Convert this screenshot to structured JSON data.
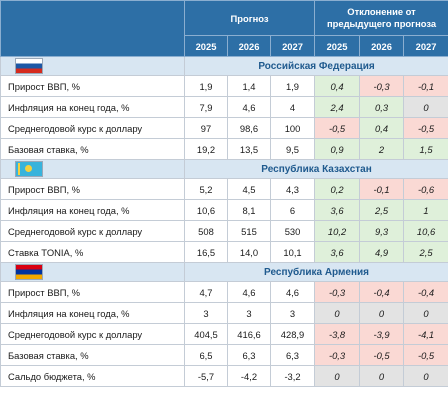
{
  "header": {
    "forecast": "Прогноз",
    "deviation": "Отклонение от предыдущего прогноза",
    "years": [
      "2025",
      "2026",
      "2027"
    ]
  },
  "colors": {
    "header_bg": "#2d6fa6",
    "country_bg": "#d8e6f2",
    "positive": "#dff0da",
    "negative": "#fad9d4",
    "zero": "#e3e3e3"
  },
  "sections": [
    {
      "country": "Российская Федерация",
      "flag": "russia-flag-icon",
      "rows": [
        {
          "label": "Прирост ВВП, %",
          "values": [
            "1,9",
            "1,4",
            "1,9"
          ],
          "dev": [
            "0,4",
            "-0,3",
            "-0,1"
          ],
          "dev_state": [
            "pos",
            "neg",
            "neg"
          ]
        },
        {
          "label": "Инфляция на конец года, %",
          "values": [
            "7,9",
            "4,6",
            "4"
          ],
          "dev": [
            "2,4",
            "0,3",
            "0"
          ],
          "dev_state": [
            "pos",
            "pos",
            "zero"
          ]
        },
        {
          "label": "Среднегодовой курс к доллару",
          "values": [
            "97",
            "98,6",
            "100"
          ],
          "dev": [
            "-0,5",
            "0,4",
            "-0,5"
          ],
          "dev_state": [
            "neg",
            "pos",
            "neg"
          ]
        },
        {
          "label": "Базовая ставка, %",
          "values": [
            "19,2",
            "13,5",
            "9,5"
          ],
          "dev": [
            "0,9",
            "2",
            "1,5"
          ],
          "dev_state": [
            "pos",
            "pos",
            "pos"
          ]
        }
      ]
    },
    {
      "country": "Республика Казахстан",
      "flag": "kazakhstan-flag-icon",
      "rows": [
        {
          "label": "Прирост ВВП, %",
          "values": [
            "5,2",
            "4,5",
            "4,3"
          ],
          "dev": [
            "0,2",
            "-0,1",
            "-0,6"
          ],
          "dev_state": [
            "pos",
            "neg",
            "neg"
          ]
        },
        {
          "label": "Инфляция на конец года, %",
          "values": [
            "10,6",
            "8,1",
            "6"
          ],
          "dev": [
            "3,6",
            "2,5",
            "1"
          ],
          "dev_state": [
            "pos",
            "pos",
            "pos"
          ]
        },
        {
          "label": "Среднегодовой курс к доллару",
          "values": [
            "508",
            "515",
            "530"
          ],
          "dev": [
            "10,2",
            "9,3",
            "10,6"
          ],
          "dev_state": [
            "pos",
            "pos",
            "pos"
          ]
        },
        {
          "label": "Ставка TONIA, %",
          "values": [
            "16,5",
            "14,0",
            "10,1"
          ],
          "dev": [
            "3,6",
            "4,9",
            "2,5"
          ],
          "dev_state": [
            "pos",
            "pos",
            "pos"
          ]
        }
      ]
    },
    {
      "country": "Республика Армения",
      "flag": "armenia-flag-icon",
      "rows": [
        {
          "label": "Прирост ВВП, %",
          "values": [
            "4,7",
            "4,6",
            "4,6"
          ],
          "dev": [
            "-0,3",
            "-0,4",
            "-0,4"
          ],
          "dev_state": [
            "neg",
            "neg",
            "neg"
          ]
        },
        {
          "label": "Инфляция на конец года, %",
          "values": [
            "3",
            "3",
            "3"
          ],
          "dev": [
            "0",
            "0",
            "0"
          ],
          "dev_state": [
            "zero",
            "zero",
            "zero"
          ]
        },
        {
          "label": "Среднегодовой курс к доллару",
          "values": [
            "404,5",
            "416,6",
            "428,9"
          ],
          "dev": [
            "-3,8",
            "-3,9",
            "-4,1"
          ],
          "dev_state": [
            "neg",
            "neg",
            "neg"
          ]
        },
        {
          "label": "Базовая ставка, %",
          "values": [
            "6,5",
            "6,3",
            "6,3"
          ],
          "dev": [
            "-0,3",
            "-0,5",
            "-0,5"
          ],
          "dev_state": [
            "neg",
            "neg",
            "neg"
          ]
        },
        {
          "label": "Сальдо бюджета, %",
          "values": [
            "-5,7",
            "-4,2",
            "-3,2"
          ],
          "dev": [
            "0",
            "0",
            "0"
          ],
          "dev_state": [
            "zero",
            "zero",
            "zero"
          ]
        }
      ]
    }
  ]
}
